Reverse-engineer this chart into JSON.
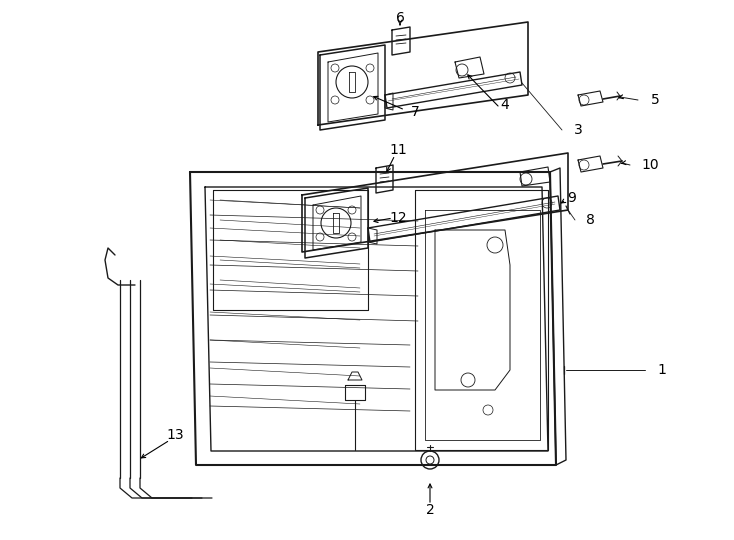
{
  "bg_color": "#ffffff",
  "lc": "#1a1a1a",
  "lw": 0.9,
  "fig_w": 7.34,
  "fig_h": 5.4,
  "dpi": 100
}
